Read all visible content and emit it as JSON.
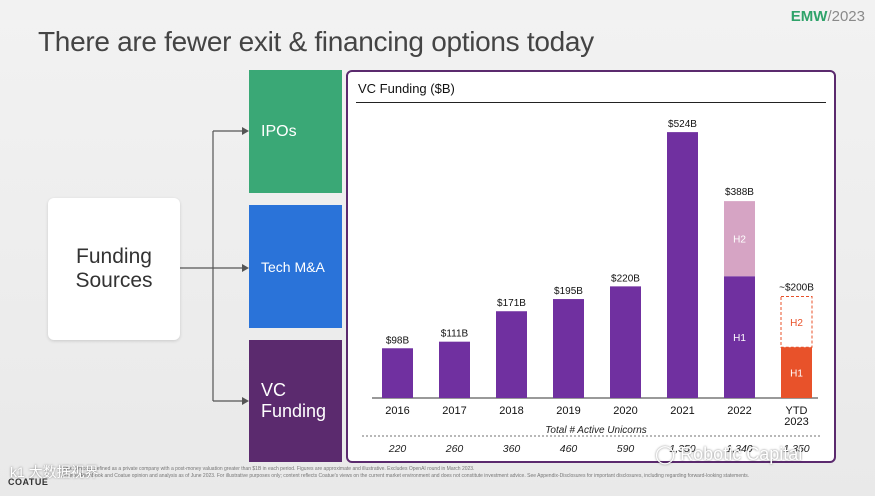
{
  "brand": {
    "name": "EMW",
    "year": "/2023"
  },
  "slide_title": "There are fewer exit & financing options today",
  "funding_sources": "Funding Sources",
  "options": [
    "IPOs",
    "Tech M&A",
    "VC Funding"
  ],
  "chart_data": {
    "type": "bar",
    "title": "VC Funding ($B)",
    "categories": [
      "2016",
      "2017",
      "2018",
      "2019",
      "2020",
      "2021",
      "2022",
      "YTD 2023"
    ],
    "values": [
      98,
      111,
      171,
      195,
      220,
      524,
      388,
      200
    ],
    "value_labels": [
      "$98B",
      "$111B",
      "$171B",
      "$195B",
      "$220B",
      "$524B",
      "$388B",
      "~$200B"
    ],
    "stacks": {
      "2022": [
        {
          "name": "H1",
          "value": 240
        },
        {
          "name": "H2",
          "value": 148
        }
      ],
      "YTD 2023": [
        {
          "name": "H1",
          "value": 100
        },
        {
          "name": "H2",
          "value": 100,
          "projected": true
        }
      ]
    },
    "unicorns_label": "Total # Active Unicorns",
    "unicorns": [
      "220",
      "260",
      "360",
      "460",
      "590",
      "1,350",
      "1,340",
      "1,350"
    ],
    "ylim": [
      0,
      540
    ],
    "colors": {
      "bar": "#7030a0",
      "h2_2022": "#d6a4c4",
      "h1_2023": "#e8522a",
      "h2_2023": "#e8522a"
    }
  },
  "footnote_lines": [
    "Note: Unicorn defined as a private company with a post-money valuation greater than $1B in each period. Figures are approximate and illustrative. Excludes OpenAI round in March 2023.",
    "Source: PitchBook and Coatue opinion and analysis as of June 2023. For illustrative purposes only; content reflects Coatue's views on the current market environment and does not constitute investment advice. See Appendix-Disclosures for important disclosures, including regarding forward-looking statements."
  ],
  "logo": "COATUE",
  "watermark": "Robotic Capital",
  "watermark2": "k1 大数据视界"
}
